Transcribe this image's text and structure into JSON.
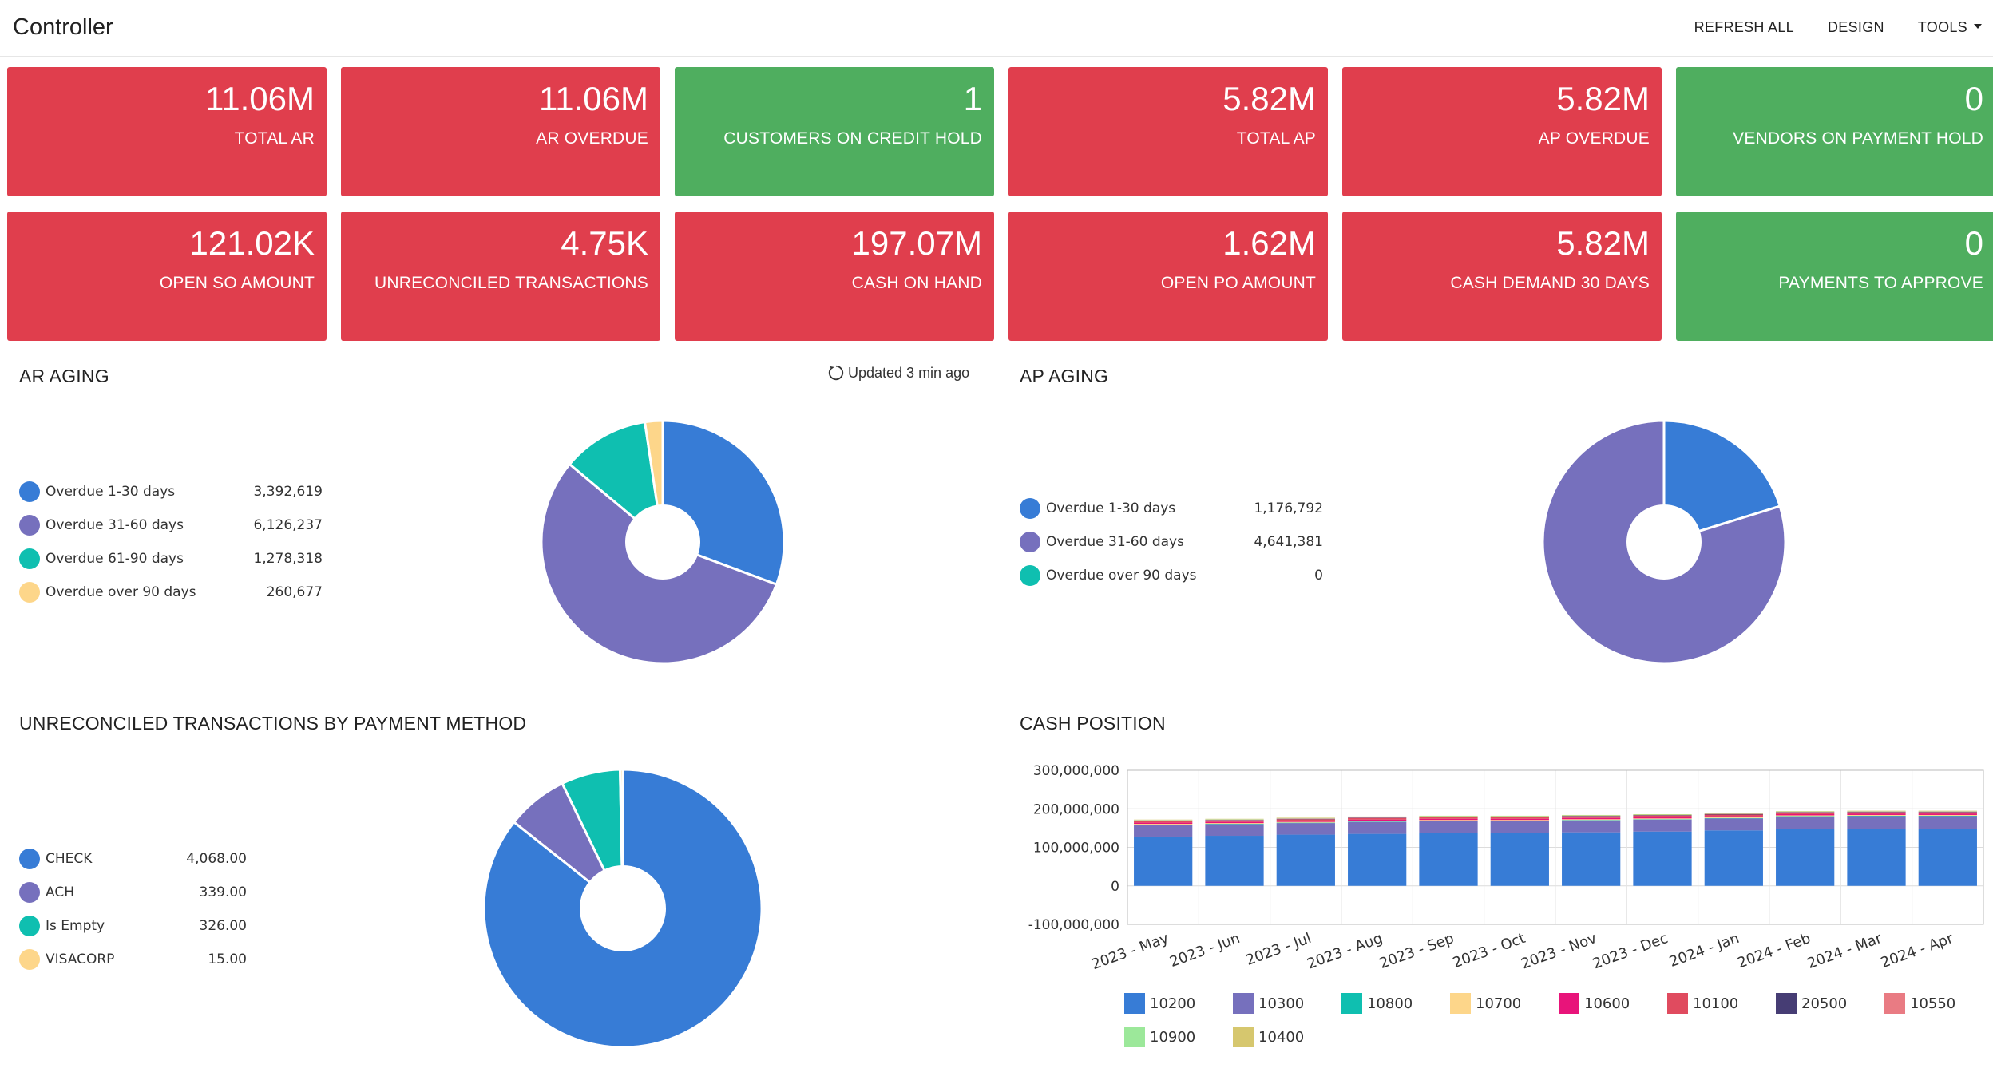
{
  "app": {
    "title": "Controller"
  },
  "toolbar": {
    "refresh_all": "REFRESH ALL",
    "design": "DESIGN",
    "tools": "TOOLS"
  },
  "tiles": [
    {
      "value": "11.06M",
      "label": "TOTAL AR",
      "status": "red"
    },
    {
      "value": "11.06M",
      "label": "AR OVERDUE",
      "status": "red"
    },
    {
      "value": "1",
      "label": "CUSTOMERS ON CREDIT HOLD",
      "status": "green"
    },
    {
      "value": "5.82M",
      "label": "TOTAL AP",
      "status": "red"
    },
    {
      "value": "5.82M",
      "label": "AP OVERDUE",
      "status": "red"
    },
    {
      "value": "0",
      "label": "VENDORS ON PAYMENT HOLD",
      "status": "green"
    },
    {
      "value": "121.02K",
      "label": "OPEN SO AMOUNT",
      "status": "red"
    },
    {
      "value": "4.75K",
      "label": "UNRECONCILED TRANSACTIONS",
      "status": "red"
    },
    {
      "value": "197.07M",
      "label": "CASH ON HAND",
      "status": "red"
    },
    {
      "value": "1.62M",
      "label": "OPEN PO AMOUNT",
      "status": "red"
    },
    {
      "value": "5.82M",
      "label": "CASH DEMAND 30 DAYS",
      "status": "red"
    },
    {
      "value": "0",
      "label": "PAYMENTS TO APPROVE",
      "status": "green"
    }
  ],
  "colors": {
    "red_tile": "#e03e4d",
    "green_tile": "#4fae5f",
    "blue": "#377cd6",
    "purple": "#7670bd",
    "teal": "#0fbfb0",
    "yellow": "#fdd68a"
  },
  "ar_aging": {
    "title": "AR AGING",
    "updated": "Updated 3 min ago",
    "refresh_icon": "refresh-icon",
    "chart_data": {
      "type": "pie",
      "categories": [
        "Overdue 1-30 days",
        "Overdue 31-60 days",
        "Overdue 61-90 days",
        "Overdue over 90 days"
      ],
      "labels": [
        "3,392,619",
        "6,126,237",
        "1,278,318",
        "260,677"
      ],
      "values": [
        3392619,
        6126237,
        1278318,
        260677
      ],
      "colors": [
        "#377cd6",
        "#7670bd",
        "#0fbfb0",
        "#fdd68a"
      ],
      "legend": "left"
    }
  },
  "ap_aging": {
    "title": "AP AGING",
    "chart_data": {
      "type": "pie",
      "categories": [
        "Overdue 1-30 days",
        "Overdue 31-60 days",
        "Overdue over 90 days"
      ],
      "labels": [
        "1,176,792",
        "4,641,381",
        "0"
      ],
      "values": [
        1176792,
        4641381,
        0
      ],
      "colors": [
        "#377cd6",
        "#7670bd",
        "#0fbfb0"
      ],
      "legend": "left"
    }
  },
  "unreconciled": {
    "title": "UNRECONCILED TRANSACTIONS BY PAYMENT METHOD",
    "chart_data": {
      "type": "pie",
      "categories": [
        "CHECK",
        "ACH",
        "Is Empty",
        "VISACORP"
      ],
      "labels": [
        "4,068.00",
        "339.00",
        "326.00",
        "15.00"
      ],
      "values": [
        4068,
        339,
        326,
        15
      ],
      "colors": [
        "#377cd6",
        "#7670bd",
        "#0fbfb0",
        "#fdd68a"
      ],
      "legend": "left"
    }
  },
  "cash_position": {
    "title": "CASH POSITION",
    "chart_data": {
      "type": "bar",
      "stacked": true,
      "categories": [
        "2023 - May",
        "2023 - Jun",
        "2023 - Jul",
        "2023 - Aug",
        "2023 - Sep",
        "2023 - Oct",
        "2023 - Nov",
        "2023 - Dec",
        "2024 - Jan",
        "2024 - Feb",
        "2024 - Mar",
        "2024 - Apr"
      ],
      "ylim": [
        -100000000,
        300000000
      ],
      "yticks": [
        -100000000,
        0,
        100000000,
        200000000,
        300000000
      ],
      "ytick_labels": [
        "-100,000,000",
        "0",
        "100,000,000",
        "200,000,000",
        "300,000,000"
      ],
      "grid": true,
      "legend": "bottom",
      "series": [
        {
          "name": "10200",
          "color": "#377cd6",
          "values": [
            128000000,
            130000000,
            133000000,
            135000000,
            137000000,
            137000000,
            139000000,
            141000000,
            144000000,
            147000000,
            148000000,
            148000000
          ]
        },
        {
          "name": "10300",
          "color": "#7670bd",
          "values": [
            30000000,
            30000000,
            30000000,
            31000000,
            31000000,
            31000000,
            31000000,
            31000000,
            31000000,
            33000000,
            33000000,
            33000000
          ]
        },
        {
          "name": "10800",
          "color": "#0fbfb0",
          "values": [
            1000000,
            1000000,
            1000000,
            1000000,
            1000000,
            1000000,
            1000000,
            1000000,
            1000000,
            1000000,
            1000000,
            1000000
          ]
        },
        {
          "name": "10700",
          "color": "#fdd68a",
          "values": [
            2000000,
            2000000,
            2000000,
            2000000,
            2000000,
            2000000,
            2000000,
            2000000,
            2000000,
            2000000,
            2000000,
            2000000
          ]
        },
        {
          "name": "10600",
          "color": "#e8147a",
          "values": [
            3000000,
            3000000,
            3000000,
            3000000,
            3000000,
            3000000,
            3000000,
            3000000,
            3000000,
            3000000,
            3000000,
            3000000
          ]
        },
        {
          "name": "10100",
          "color": "#e04b5f",
          "values": [
            4000000,
            4000000,
            4000000,
            4000000,
            4000000,
            4000000,
            4000000,
            4000000,
            4000000,
            4000000,
            4000000,
            4000000
          ]
        },
        {
          "name": "20500",
          "color": "#463d74",
          "values": [
            1000000,
            1000000,
            1000000,
            1000000,
            1000000,
            1000000,
            1000000,
            1000000,
            1000000,
            1000000,
            1000000,
            1000000
          ]
        },
        {
          "name": "10550",
          "color": "#e97b83",
          "values": [
            1000000,
            1000000,
            1000000,
            1000000,
            1000000,
            1000000,
            1000000,
            1000000,
            1000000,
            1000000,
            1000000,
            1000000
          ]
        },
        {
          "name": "10900",
          "color": "#9ce89a",
          "values": [
            1000000,
            1000000,
            1000000,
            1000000,
            1000000,
            1000000,
            1000000,
            1000000,
            1000000,
            1000000,
            1000000,
            1000000
          ]
        },
        {
          "name": "10400",
          "color": "#d6c76e",
          "values": [
            1000000,
            1000000,
            1000000,
            1000000,
            1000000,
            1000000,
            1000000,
            1000000,
            1000000,
            1000000,
            1000000,
            1000000
          ]
        }
      ]
    }
  }
}
